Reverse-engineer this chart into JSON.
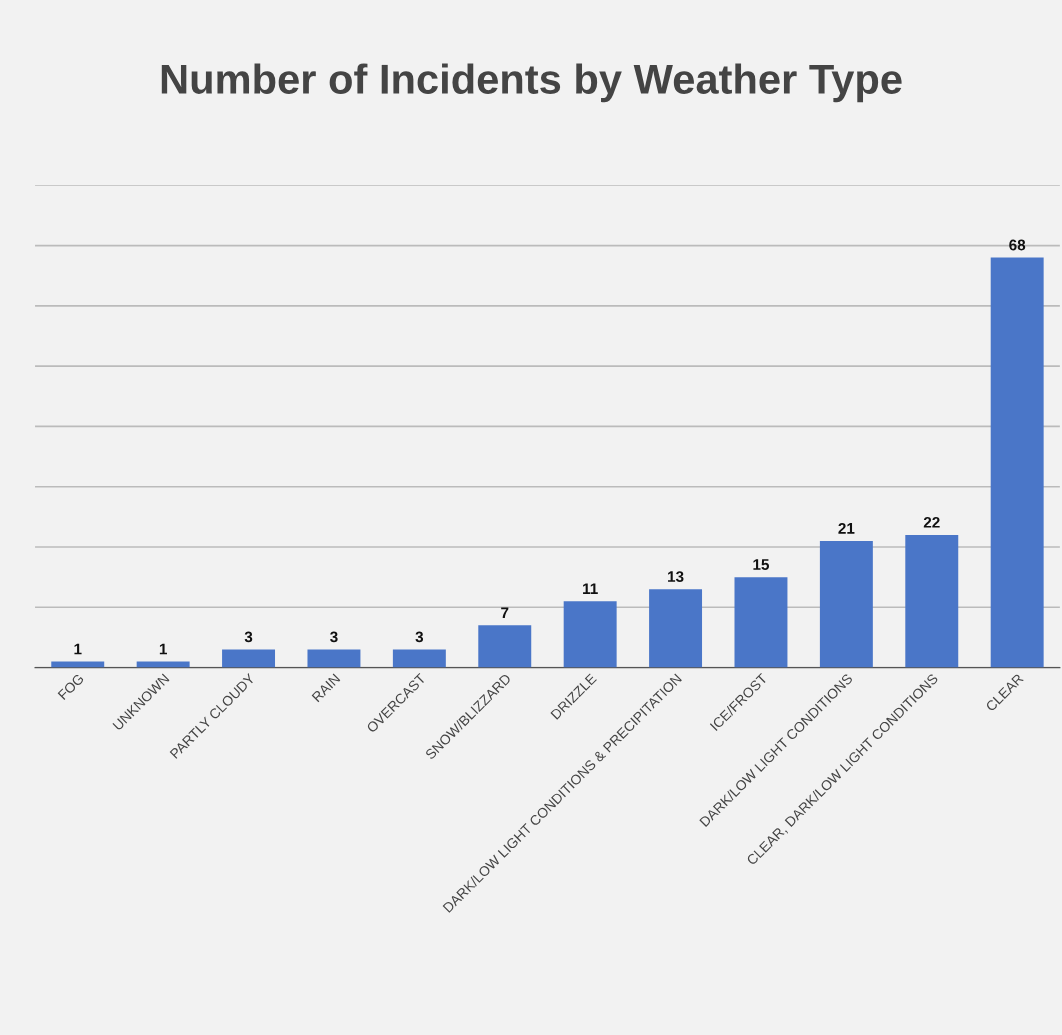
{
  "chart_data": {
    "type": "bar",
    "title": "Number of Incidents by Weather Type",
    "categories": [
      "FOG",
      "UNKNOWN",
      "PARTLY CLOUDY",
      "RAIN",
      "OVERCAST",
      "SNOW/BLIZZARD",
      "DRIZZLE",
      "DARK/LOW LIGHT CONDITIONS & PRECIPITATION",
      "ICE/FROST",
      "DARK/LOW LIGHT CONDITIONS",
      "CLEAR, DARK/LOW LIGHT CONDITIONS",
      "CLEAR"
    ],
    "values": [
      1,
      1,
      3,
      3,
      3,
      7,
      11,
      13,
      15,
      21,
      22,
      68
    ],
    "color": "#4a76c8",
    "ylim": [
      0,
      80
    ],
    "yticks": [
      {
        "value": 0,
        "label": null
      },
      {
        "value": 10,
        "label": null
      },
      {
        "value": 20,
        "label": null
      },
      {
        "value": 30,
        "label": null
      },
      {
        "value": 40,
        "label": null
      },
      {
        "value": 50,
        "label": null
      },
      {
        "value": 60,
        "label": null
      },
      {
        "value": 70,
        "label": null
      },
      {
        "value": 80,
        "label": null
      }
    ],
    "grid": "y",
    "tick_labels": "x",
    "data_labels": true
  }
}
